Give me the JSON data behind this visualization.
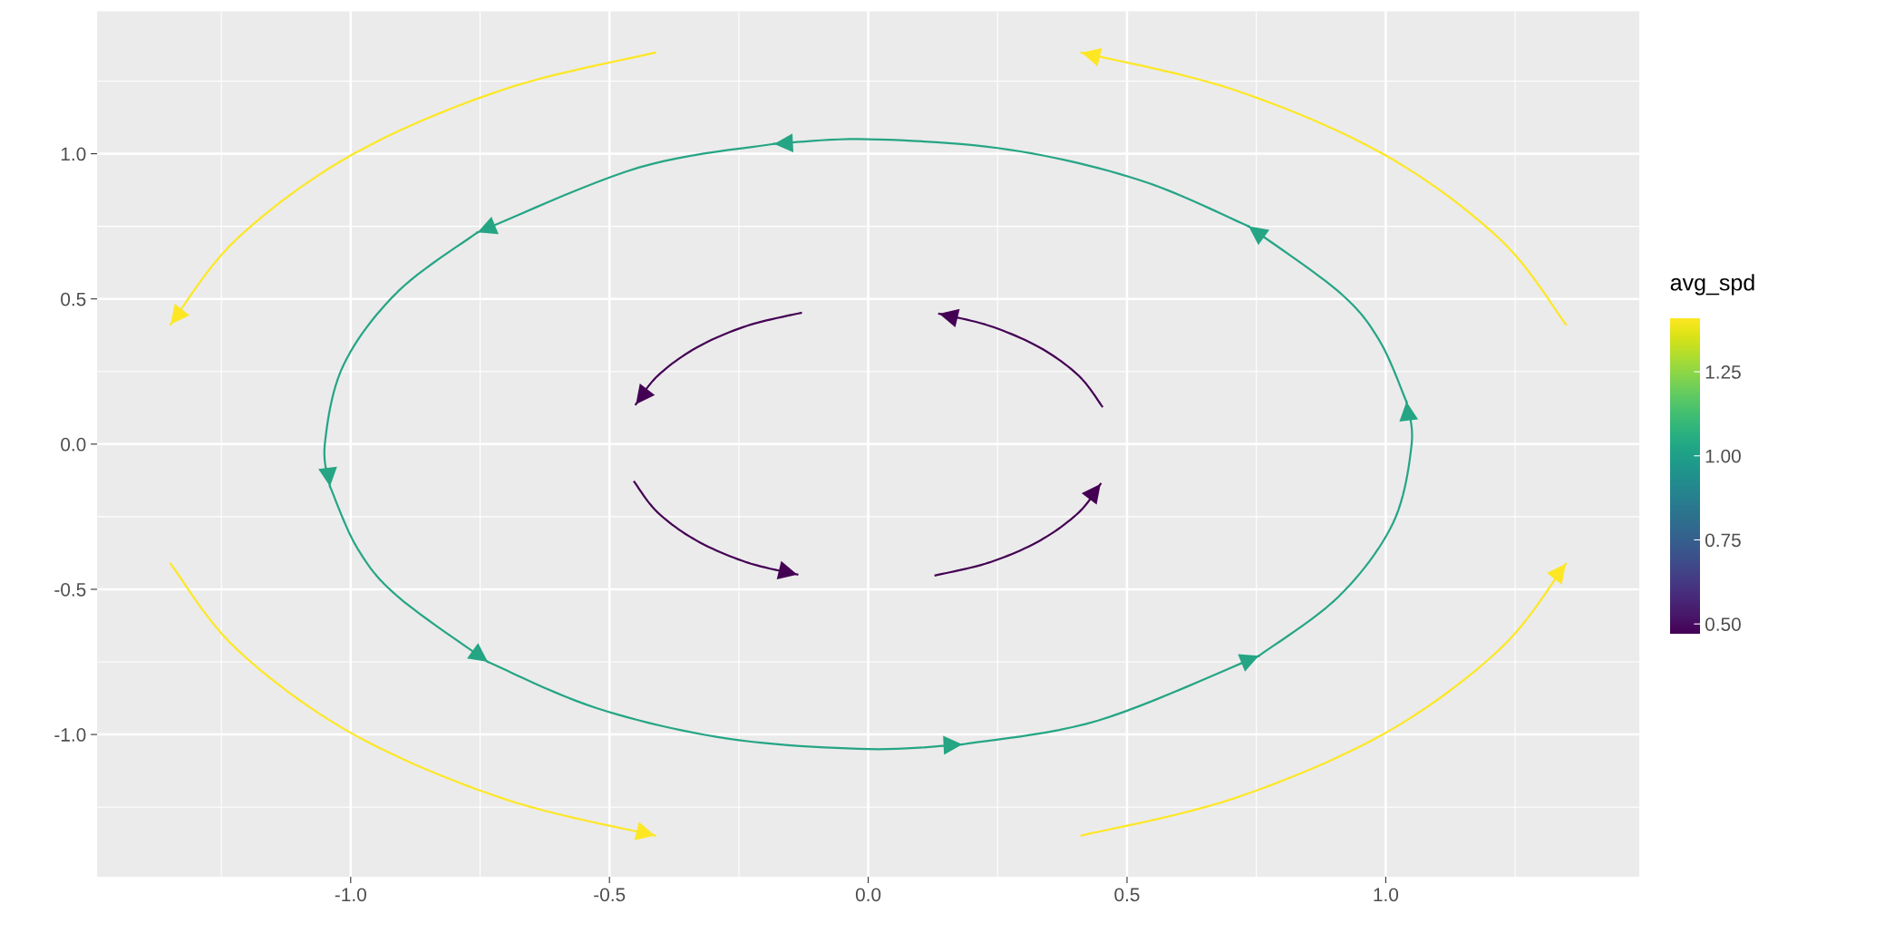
{
  "chart_data": {
    "type": "line",
    "clabel": "avg_spd",
    "clim": [
      0.47,
      1.41
    ],
    "cticks": [
      {
        "value": 0.5,
        "label": "0.50"
      },
      {
        "value": 0.75,
        "label": "0.75"
      },
      {
        "value": 1.0,
        "label": "1.00"
      },
      {
        "value": 1.25,
        "label": "1.25"
      }
    ],
    "xlim": [
      -1.49,
      1.49
    ],
    "ylim": [
      -1.49,
      1.49
    ],
    "xticks": [
      {
        "value": -1.0,
        "label": "-1.0"
      },
      -0.5,
      {
        "value": 0.0,
        "label": "0.0"
      },
      0.5,
      {
        "value": 1.0,
        "label": "1.0"
      }
    ],
    "yticks": [
      {
        "value": -1.0,
        "label": "-1.0"
      },
      -0.5,
      {
        "value": 0.0,
        "label": "0.0"
      },
      0.5,
      {
        "value": 1.0,
        "label": "1.0"
      }
    ],
    "grid": true,
    "marker": "none",
    "line_style": "solid",
    "series": [
      {
        "color": "#440154",
        "x": [
          0.452,
          0.407,
          0.332,
          0.235,
          0.137
        ],
        "values": [
          0.13,
          0.235,
          0.332,
          0.407,
          0.449
        ]
      },
      {
        "color": "#440154",
        "x": [
          -0.13,
          -0.235,
          -0.332,
          -0.407,
          -0.449
        ],
        "values": [
          0.452,
          0.407,
          0.332,
          0.235,
          0.137
        ]
      },
      {
        "color": "#440154",
        "x": [
          -0.452,
          -0.407,
          -0.332,
          -0.235,
          -0.137
        ],
        "values": [
          -0.13,
          -0.235,
          -0.332,
          -0.407,
          -0.449
        ]
      },
      {
        "color": "#440154",
        "x": [
          0.13,
          0.235,
          0.332,
          0.407,
          0.449
        ],
        "values": [
          -0.452,
          -0.407,
          -0.332,
          -0.235,
          -0.137
        ]
      },
      {
        "color": "#25a584",
        "x": [
          0.755,
          0.909,
          1.014,
          1.05,
          1.04
        ],
        "values": [
          -0.729,
          -0.525,
          -0.272,
          0.0,
          0.146
        ]
      },
      {
        "color": "#25a584",
        "x": [
          1.04,
          0.987,
          0.909,
          0.735
        ],
        "values": [
          0.146,
          0.359,
          0.525,
          0.75
        ]
      },
      {
        "color": "#25a584",
        "x": [
          0.735,
          0.525,
          0.272,
          0.0,
          -0.182
        ],
        "values": [
          0.75,
          0.909,
          1.014,
          1.05,
          1.034
        ]
      },
      {
        "color": "#25a584",
        "x": [
          -0.182,
          -0.444,
          -0.755
        ],
        "values": [
          1.034,
          0.952,
          0.729
        ]
      },
      {
        "color": "#25a584",
        "x": [
          -0.755,
          -0.909,
          -1.014,
          -1.05,
          -1.04
        ],
        "values": [
          0.729,
          0.525,
          0.272,
          0.0,
          -0.146
        ]
      },
      {
        "color": "#25a584",
        "x": [
          -1.04,
          -0.987,
          -0.909,
          -0.735
        ],
        "values": [
          -0.146,
          -0.359,
          -0.525,
          -0.75
        ]
      },
      {
        "color": "#25a584",
        "x": [
          -0.735,
          -0.525,
          -0.272,
          0.0,
          0.182
        ],
        "values": [
          -0.75,
          -0.909,
          -1.014,
          -1.05,
          -1.034
        ]
      },
      {
        "color": "#25a584",
        "x": [
          0.182,
          0.444,
          0.755
        ],
        "values": [
          -1.034,
          -0.952,
          -0.729
        ]
      },
      {
        "color": "#fde725",
        "x": [
          1.348,
          1.221,
          0.997,
          0.705,
          0.412
        ],
        "values": [
          0.412,
          0.705,
          0.997,
          1.221,
          1.348
        ]
      },
      {
        "color": "#fde725",
        "x": [
          -0.412,
          -0.705,
          -0.997,
          -1.221,
          -1.348
        ],
        "values": [
          1.348,
          1.221,
          0.997,
          0.705,
          0.412
        ]
      },
      {
        "color": "#fde725",
        "x": [
          -1.348,
          -1.221,
          -0.997,
          -0.705,
          -0.412
        ],
        "values": [
          -0.412,
          -0.705,
          -0.997,
          -1.221,
          -1.348
        ]
      },
      {
        "color": "#fde725",
        "x": [
          0.412,
          0.705,
          0.997,
          1.221,
          1.348
        ],
        "values": [
          -1.348,
          -1.221,
          -0.997,
          -0.705,
          -0.412
        ]
      }
    ]
  }
}
